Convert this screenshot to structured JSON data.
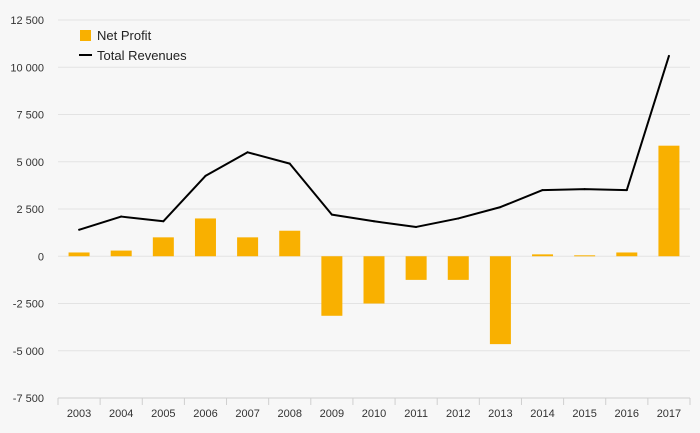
{
  "chart_data": {
    "type": "bar",
    "categories": [
      "2003",
      "2004",
      "2005",
      "2006",
      "2007",
      "2008",
      "2009",
      "2010",
      "2011",
      "2012",
      "2013",
      "2014",
      "2015",
      "2016",
      "2017"
    ],
    "series": [
      {
        "name": "Net Profit",
        "type": "bar",
        "color": "#f9b000",
        "values": [
          200,
          300,
          1000,
          2000,
          1000,
          1350,
          -3150,
          -2500,
          -1250,
          -1250,
          -4650,
          100,
          50,
          200,
          5850
        ]
      },
      {
        "name": "Total Revenues",
        "type": "line",
        "color": "#000000",
        "values": [
          1400,
          2100,
          1850,
          4250,
          5500,
          4900,
          2200,
          1850,
          1550,
          2000,
          2600,
          3500,
          3550,
          3500,
          10600
        ]
      }
    ],
    "y_ticks": [
      "12 500",
      "10 000",
      "7 500",
      "5 000",
      "2 500",
      "0",
      "-2 500",
      "-5 000",
      "-7 500"
    ],
    "ylim": [
      -7500,
      12500
    ],
    "grid": true,
    "legend_position": "top-left"
  }
}
